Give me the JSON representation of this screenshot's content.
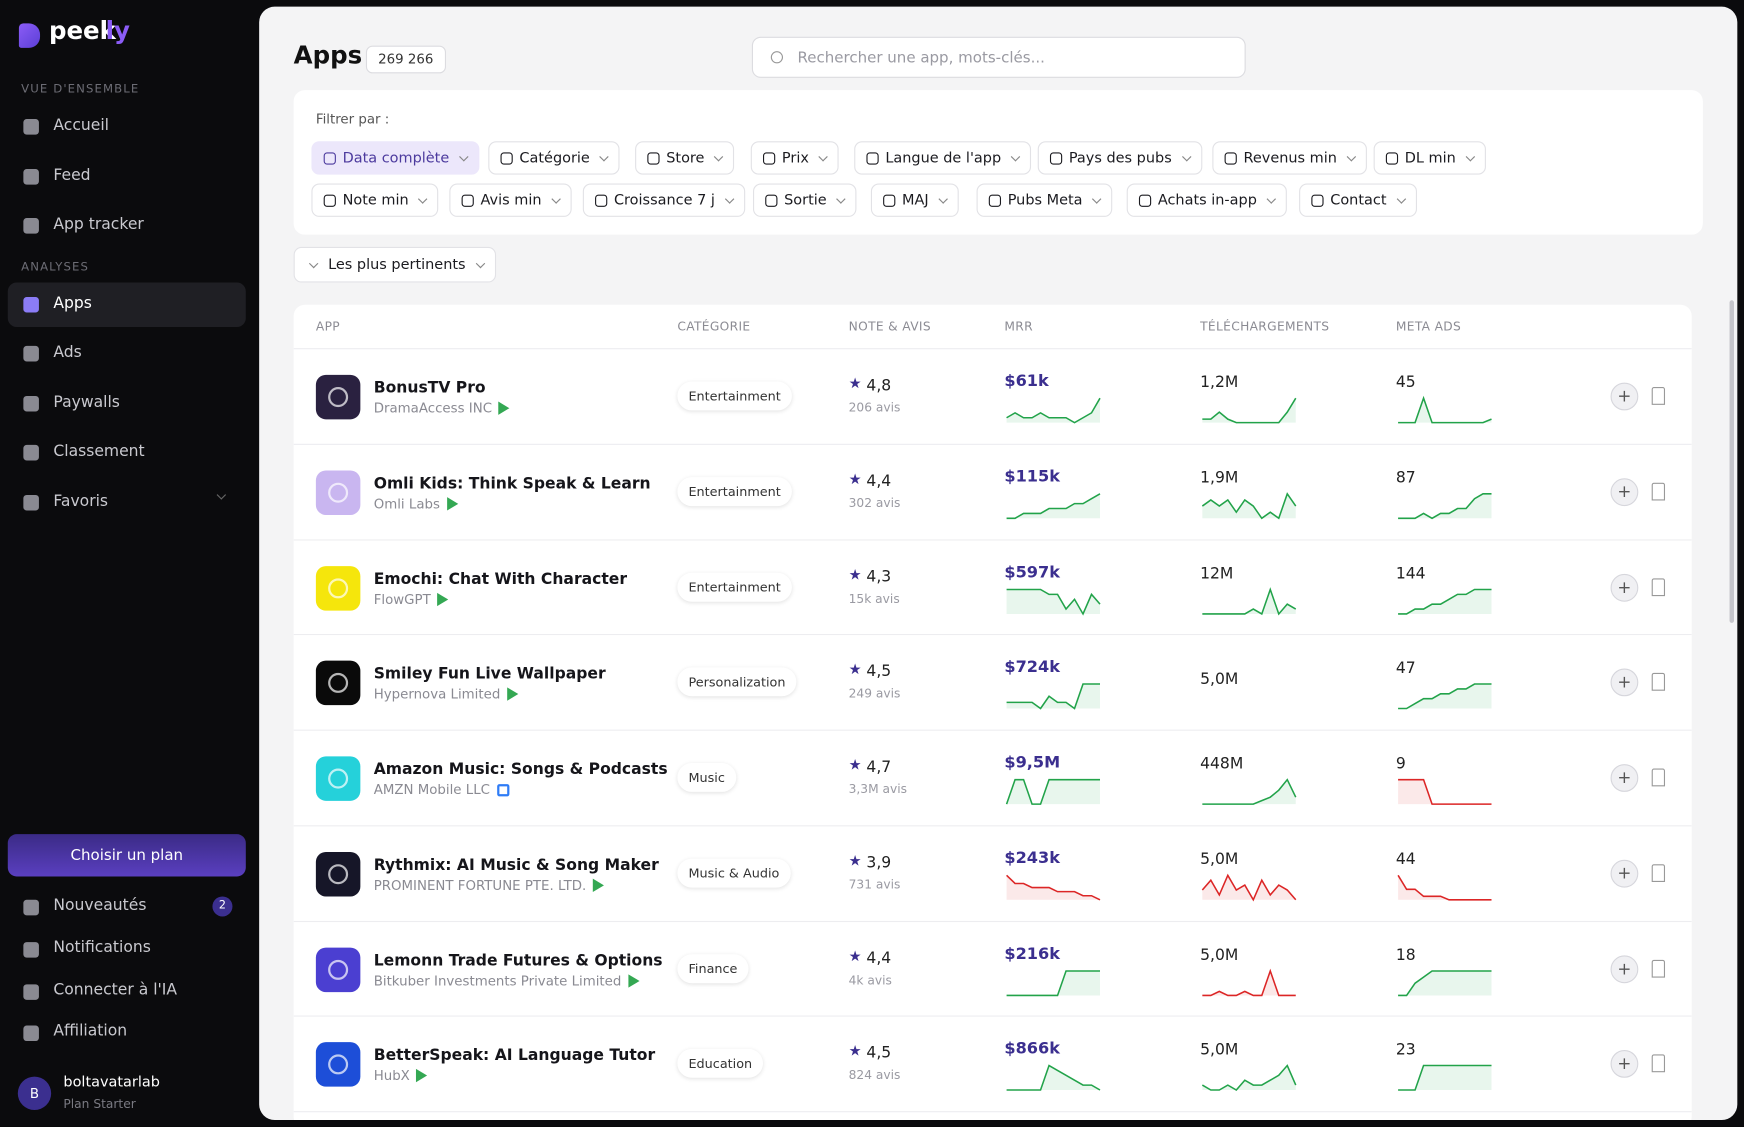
{
  "sidebar": {
    "brand": [
      "peek",
      "ly"
    ],
    "sections": [
      {
        "title": "VUE D'ENSEMBLE",
        "items": [
          "Accueil",
          "Feed",
          "App tracker"
        ]
      },
      {
        "title": "ANALYSES",
        "items": [
          "Apps",
          "Ads",
          "Paywalls",
          "Classement",
          "Favoris"
        ],
        "active_index": 0
      }
    ],
    "plan_button": "Choisir un plan",
    "bottom_items": [
      {
        "label": "Nouveautés",
        "badge": 2
      },
      {
        "label": "Notifications"
      },
      {
        "label": "Connecter à l'IA"
      },
      {
        "label": "Affiliation"
      }
    ],
    "user": {
      "initial": "B",
      "name": "boltavatarlab",
      "plan": "Plan Starter"
    }
  },
  "header": {
    "title": "Apps",
    "count": "269 266",
    "search_placeholder": "Rechercher une app, mots-clés..."
  },
  "filters": {
    "label": "Filtrer par :",
    "rows": [
      [
        "Data complète",
        "Catégorie",
        "Store",
        "Prix",
        "Langue de l'app",
        "Pays des pubs",
        "Revenus min",
        "DL min"
      ],
      [
        "Note min",
        "Avis min",
        "Croissance 7 j",
        "Sortie",
        "MAJ",
        "Pubs Meta",
        "Achats in-app",
        "Contact"
      ]
    ],
    "active": [
      0,
      0
    ]
  },
  "sort": "Les plus pertinents",
  "table": {
    "columns": [
      "APP",
      "CATÉGORIE",
      "NOTE & AVIS",
      "MRR",
      "TÉLÉCHARGEMENTS",
      "META ADS"
    ],
    "up_color": "#22a34a",
    "down_color": "#dc2626",
    "rows": [
      {
        "name": "BonusTV Pro",
        "developer": "DramaAccess INC",
        "store": "play",
        "category": "Entertainment",
        "rating": "4,8",
        "reviews": "206 avis",
        "mrr": "$61k",
        "downloads": "1,2M",
        "meta_ads": "45",
        "icon": "#2a2140",
        "trends": {
          "mrr": {
            "up": true,
            "values": [
              3,
              4,
              3,
              3,
              4,
              3,
              3,
              3,
              2,
              3,
              4,
              7
            ]
          },
          "downloads": {
            "up": true,
            "values": [
              2,
              2,
              4,
              2,
              1,
              1,
              1,
              1,
              1,
              1,
              4,
              8
            ]
          },
          "meta_ads": {
            "up": true,
            "values": [
              1,
              1,
              1,
              8,
              1,
              1,
              1,
              1,
              1,
              1,
              1,
              2
            ]
          }
        }
      },
      {
        "name": "Omli Kids: Think Speak & Learn",
        "developer": "Omli Labs",
        "store": "play",
        "category": "Entertainment",
        "rating": "4,4",
        "reviews": "302 avis",
        "mrr": "$115k",
        "downloads": "1,9M",
        "meta_ads": "87",
        "icon": "#c9b6f0",
        "trends": {
          "mrr": {
            "up": true,
            "values": [
              1,
              1,
              2,
              2,
              2,
              3,
              3,
              3,
              4,
              4,
              5,
              6
            ]
          },
          "downloads": {
            "up": true,
            "values": [
              4,
              5,
              4,
              5,
              3,
              5,
              4,
              2,
              3,
              2,
              6,
              4
            ]
          },
          "meta_ads": {
            "up": true,
            "values": [
              1,
              1,
              1,
              2,
              1,
              2,
              2,
              3,
              3,
              5,
              6,
              6
            ]
          }
        }
      },
      {
        "name": "Emochi: Chat With Character",
        "developer": "FlowGPT",
        "store": "play",
        "category": "Entertainment",
        "rating": "4,3",
        "reviews": "15k avis",
        "mrr": "$597k",
        "downloads": "12M",
        "meta_ads": "144",
        "icon": "#f5e60c",
        "trends": {
          "mrr": {
            "up": true,
            "values": [
              6,
              6,
              6,
              6,
              6,
              5,
              5,
              2,
              4,
              1,
              5,
              3
            ]
          },
          "downloads": {
            "up": true,
            "values": [
              1,
              1,
              1,
              1,
              1,
              1,
              2,
              1,
              6,
              1,
              3,
              2
            ]
          },
          "meta_ads": {
            "up": true,
            "values": [
              1,
              1,
              2,
              2,
              3,
              3,
              4,
              5,
              5,
              6,
              6,
              6
            ]
          }
        }
      },
      {
        "name": "Smiley Fun Live Wallpaper",
        "developer": "Hypernova Limited",
        "store": "play",
        "category": "Personalization",
        "rating": "4,5",
        "reviews": "249 avis",
        "mrr": "$724k",
        "downloads": "5,0M",
        "meta_ads": "47",
        "icon": "#0a0a0a",
        "trends": {
          "mrr": {
            "up": true,
            "values": [
              2,
              2,
              2,
              2,
              1,
              3,
              2,
              2,
              1,
              5,
              5,
              5
            ]
          },
          "downloads": null,
          "meta_ads": {
            "up": true,
            "values": [
              1,
              1,
              2,
              3,
              3,
              4,
              4,
              5,
              5,
              6,
              6,
              6
            ]
          }
        }
      },
      {
        "name": "Amazon Music: Songs & Podcasts",
        "developer": "AMZN Mobile LLC",
        "store": "appstore",
        "category": "Music",
        "rating": "4,7",
        "reviews": "3,3M avis",
        "mrr": "$9,5M",
        "downloads": "448M",
        "meta_ads": "9",
        "icon": "#25d1da",
        "trends": {
          "mrr": {
            "up": true,
            "values": [
              1,
              7,
              7,
              1,
              1,
              7,
              7,
              7,
              7,
              7,
              7,
              7
            ]
          },
          "downloads": {
            "up": true,
            "values": [
              1,
              1,
              1,
              1,
              1,
              1,
              1,
              2,
              3,
              5,
              8,
              3
            ]
          },
          "meta_ads": {
            "up": false,
            "values": [
              7,
              7,
              7,
              7,
              1,
              1,
              1,
              1,
              1,
              1,
              1,
              1
            ]
          }
        }
      },
      {
        "name": "Rythmix: AI Music & Song Maker",
        "developer": "PROMINENT FORTUNE PTE. LTD.",
        "store": "play",
        "category": "Music & Audio",
        "rating": "3,9",
        "reviews": "731 avis",
        "mrr": "$243k",
        "downloads": "5,0M",
        "meta_ads": "44",
        "icon": "#161628",
        "trends": {
          "mrr": {
            "up": false,
            "values": [
              7,
              5,
              5,
              4,
              4,
              4,
              3,
              3,
              3,
              2,
              2,
              1
            ]
          },
          "downloads": {
            "up": false,
            "values": [
              3,
              5,
              2,
              6,
              3,
              4,
              1,
              5,
              2,
              4,
              3,
              1
            ]
          },
          "meta_ads": {
            "up": false,
            "values": [
              8,
              4,
              4,
              2,
              2,
              2,
              1,
              1,
              1,
              1,
              1,
              1
            ]
          }
        }
      },
      {
        "name": "Lemonn Trade Futures & Options",
        "developer": "Bitkuber Investments Private Limited",
        "store": "play",
        "category": "Finance",
        "rating": "4,4",
        "reviews": "4k avis",
        "mrr": "$216k",
        "downloads": "5,0M",
        "meta_ads": "18",
        "icon": "#4b3fd1",
        "trends": {
          "mrr": {
            "up": true,
            "values": [
              1,
              1,
              1,
              1,
              1,
              1,
              1,
              6,
              6,
              6,
              6,
              6
            ]
          },
          "downloads": {
            "up": false,
            "values": [
              2,
              2,
              3,
              2,
              2,
              3,
              2,
              2,
              8,
              2,
              2,
              2
            ]
          },
          "meta_ads": {
            "up": true,
            "values": [
              1,
              1,
              3,
              4,
              5,
              5,
              5,
              5,
              5,
              5,
              5,
              5
            ]
          }
        }
      },
      {
        "name": "BetterSpeak: AI Language Tutor",
        "developer": "HubX",
        "store": "play",
        "category": "Education",
        "rating": "4,5",
        "reviews": "824 avis",
        "mrr": "$866k",
        "downloads": "5,0M",
        "meta_ads": "23",
        "icon": "#1d4ed8",
        "trends": {
          "mrr": {
            "up": true,
            "values": [
              1,
              1,
              1,
              1,
              1,
              6,
              5,
              4,
              3,
              2,
              2,
              1
            ]
          },
          "downloads": {
            "up": true,
            "values": [
              2,
              1,
              1,
              2,
              1,
              3,
              2,
              2,
              3,
              4,
              6,
              2
            ]
          },
          "meta_ads": {
            "up": true,
            "values": [
              1,
              1,
              1,
              5,
              5,
              5,
              5,
              5,
              5,
              5,
              5,
              5
            ]
          }
        }
      }
    ]
  }
}
